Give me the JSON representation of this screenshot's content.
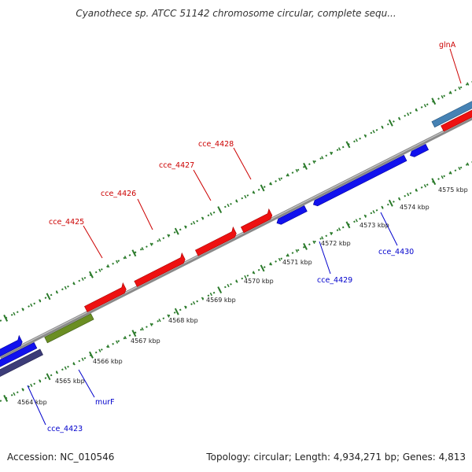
{
  "title": "Cyanothece sp. ATCC 51142 chromosome circular, complete sequ...",
  "footer": {
    "accession": "Accession: NC_010546",
    "summary": "Topology: circular; Length: 4,934,271 bp; Genes: 4,813"
  },
  "scale_labels": [
    "4564 kbp",
    "4565 kbp",
    "4566 kbp",
    "4567 kbp",
    "4568 kbp",
    "4569 kbp",
    "4570 kbp",
    "4571 kbp",
    "4572 kbp",
    "4573 kbp",
    "4574 kbp",
    "4575 kbp"
  ],
  "genes": {
    "forward": [
      "glnA",
      "cce_4428",
      "cce_4427",
      "cce_4426",
      "cce_4425"
    ],
    "reverse": [
      "cce_4430",
      "cce_4429",
      "murF",
      "cce_4423"
    ]
  },
  "colors": {
    "forward_label": "#cc0000",
    "reverse_label": "#0000cc",
    "forward_gene": "#ee1111",
    "reverse_gene": "#1111ee",
    "green_gene": "#6b8e23",
    "navy_gene": "#3c3c78",
    "steel_gene": "#4682b4",
    "backbone": "#888888",
    "tick": "#2a7a2a"
  }
}
